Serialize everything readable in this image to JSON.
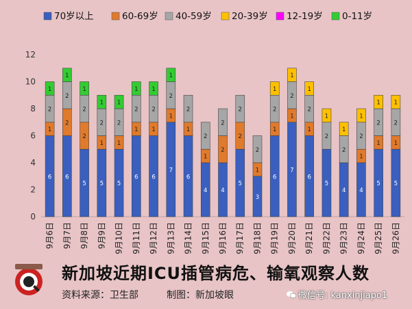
{
  "chart_data": {
    "type": "stacked-bar",
    "title": "",
    "xlabel": "",
    "ylabel": "",
    "ylim": [
      0,
      12
    ],
    "yticks": [
      0,
      2,
      4,
      6,
      8,
      10,
      12
    ],
    "grid": false,
    "legend_position": "top",
    "categories": [
      "9月6日",
      "9月7日",
      "9月8日",
      "9月9日",
      "9月10日",
      "9月11日",
      "9月12日",
      "9月13日",
      "9月14日",
      "9月15日",
      "9月16日",
      "9月17日",
      "9月18日",
      "9月19日",
      "9月20日",
      "9月21日",
      "9月22日",
      "9月23日",
      "9月24日",
      "9月25日",
      "9月26日"
    ],
    "series": [
      {
        "name": "70岁以上",
        "color": "#3a5fbf",
        "values": [
          6,
          6,
          5,
          5,
          5,
          6,
          6,
          7,
          6,
          4,
          4,
          5,
          3,
          6,
          7,
          6,
          5,
          4,
          4,
          5,
          5
        ]
      },
      {
        "name": "60-69岁",
        "color": "#e07a2c",
        "values": [
          1,
          2,
          2,
          1,
          1,
          1,
          1,
          1,
          1,
          1,
          2,
          2,
          1,
          1,
          1,
          1,
          0,
          0,
          1,
          1,
          1
        ]
      },
      {
        "name": "40-59岁",
        "color": "#a6a6a6",
        "values": [
          2,
          2,
          2,
          2,
          2,
          2,
          2,
          2,
          2,
          2,
          2,
          2,
          2,
          2,
          2,
          2,
          2,
          2,
          2,
          2,
          2
        ]
      },
      {
        "name": "20-39岁",
        "color": "#ffc000",
        "values": [
          0,
          0,
          0,
          0,
          0,
          0,
          0,
          0,
          0,
          0,
          0,
          0,
          0,
          1,
          1,
          1,
          1,
          1,
          1,
          1,
          1
        ]
      },
      {
        "name": "12-19岁",
        "color": "#ff00ff",
        "values": [
          0,
          0,
          0,
          0,
          0,
          0,
          0,
          0,
          0,
          0,
          0,
          0,
          0,
          0,
          0,
          0,
          0,
          0,
          0,
          0,
          0
        ]
      },
      {
        "name": "0-11岁",
        "color": "#33cc33",
        "values": [
          1,
          1,
          1,
          1,
          1,
          1,
          1,
          1,
          0,
          0,
          0,
          0,
          0,
          0,
          0,
          0,
          0,
          0,
          0,
          0,
          0
        ]
      }
    ]
  },
  "footer": {
    "title": "新加坡近期ICU插管病危、输氧观察人数",
    "source": "资料来源：卫生部",
    "credit": "制图：新加坡眼",
    "wechat": "微信号: kanxinjiapo1"
  }
}
